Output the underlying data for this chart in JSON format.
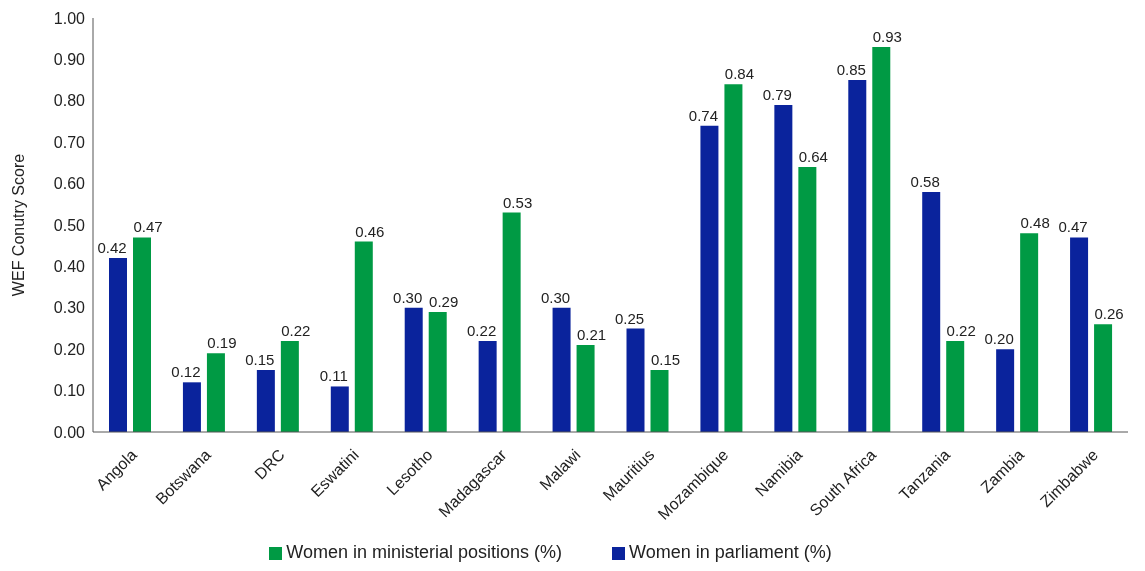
{
  "chart_data": {
    "type": "bar",
    "ylabel": "WEF Conutry Score",
    "categories": [
      "Angola",
      "Botswana",
      "DRC",
      "Eswatini",
      "Lesotho",
      "Madagascar",
      "Malawi",
      "Mauritius",
      "Mozambique",
      "Namibia",
      "South Africa",
      "Tanzania",
      "Zambia",
      "Zimbabwe"
    ],
    "series": [
      {
        "name": "Women in parliament (%)",
        "color": "#0a239c",
        "values": [
          0.42,
          0.12,
          0.15,
          0.11,
          0.3,
          0.22,
          0.3,
          0.25,
          0.74,
          0.79,
          0.85,
          0.58,
          0.2,
          0.47
        ],
        "value_labels": [
          "0.42",
          "0.12",
          "0.15",
          "0.11",
          "0.30",
          "0.22",
          "0.30",
          "0.25",
          "0.74",
          "0.79",
          "0.85",
          "0.58",
          "0.20",
          "0.47"
        ]
      },
      {
        "name": "Women in ministerial positions (%)",
        "color": "#009a44",
        "values": [
          0.47,
          0.19,
          0.22,
          0.46,
          0.29,
          0.53,
          0.21,
          0.15,
          0.84,
          0.64,
          0.93,
          0.22,
          0.48,
          0.26
        ],
        "value_labels": [
          "0.47",
          "0.19",
          "0.22",
          "0.46",
          "0.29",
          "0.53",
          "0.21",
          "0.15",
          "0.84",
          "0.64",
          "0.93",
          "0.22",
          "0.48",
          "0.26"
        ]
      }
    ],
    "ylim": [
      0,
      1
    ],
    "yticks": [
      {
        "value": 0,
        "label": "0.00"
      },
      {
        "value": 0.1,
        "label": "0.10"
      },
      {
        "value": 0.2,
        "label": "0.20"
      },
      {
        "value": 0.3,
        "label": "0.30"
      },
      {
        "value": 0.4,
        "label": "0.40"
      },
      {
        "value": 0.5,
        "label": "0.50"
      },
      {
        "value": 0.6,
        "label": "0.60"
      },
      {
        "value": 0.7,
        "label": "0.70"
      },
      {
        "value": 0.8,
        "label": "0.80"
      },
      {
        "value": 0.9,
        "label": "0.90"
      },
      {
        "value": 1,
        "label": "1.00"
      }
    ],
    "grid": false,
    "legend": "bottom"
  }
}
